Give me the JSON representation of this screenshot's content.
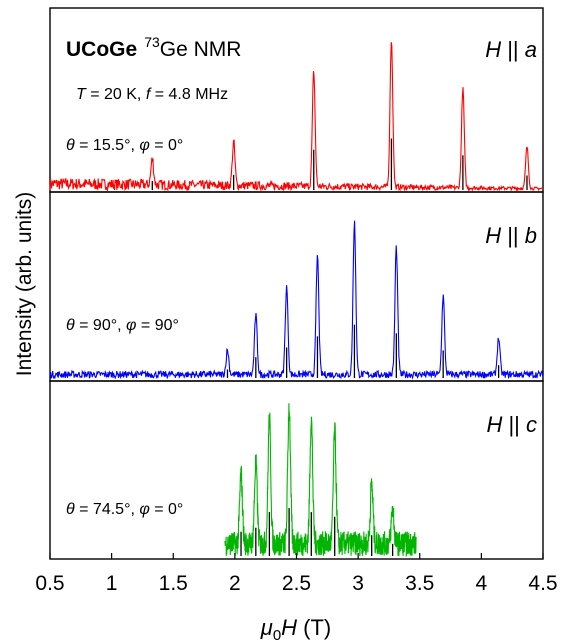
{
  "chart_data": {
    "type": "line",
    "xlabel_main": "μ",
    "xlabel_sub": "0",
    "xlabel_var": "H",
    "xlabel_unit": " (T)",
    "ylabel": "Intensity (arb. units)",
    "xlim": [
      0.5,
      4.5
    ],
    "xticks": [
      "0.5",
      "1",
      "1.5",
      "2",
      "2.5",
      "3",
      "3.5",
      "4",
      "4.5"
    ],
    "title_bold": "UCoGe",
    "title_sup": "73",
    "title_rest": "Ge NMR",
    "conditions": {
      "T_sym": "T",
      "T_val": " = 20 K, ",
      "f_sym": "f",
      "f_val": " = 4.8 MHz"
    },
    "panels": [
      {
        "field_label": "H",
        "field_sep": " || ",
        "field_axis": "a",
        "theta_text": " = 15.5°,  ",
        "phi_text": " = 0°",
        "color": "#ff0000",
        "xrange": [
          0.5,
          4.5
        ],
        "noise_level": 0.06,
        "peaks": [
          {
            "x": 1.33,
            "y": 0.16
          },
          {
            "x": 1.99,
            "y": 0.27
          },
          {
            "x": 2.64,
            "y": 0.72
          },
          {
            "x": 3.27,
            "y": 0.92
          },
          {
            "x": 3.85,
            "y": 0.62
          },
          {
            "x": 4.37,
            "y": 0.26
          }
        ]
      },
      {
        "field_label": "H",
        "field_sep": " || ",
        "field_axis": "b",
        "theta_text": " = 90°,  ",
        "phi_text": " = 90°",
        "color": "#0000ff",
        "xrange": [
          0.5,
          4.5
        ],
        "noise_level": 0.04,
        "peaks": [
          {
            "x": 1.94,
            "y": 0.14
          },
          {
            "x": 2.17,
            "y": 0.34
          },
          {
            "x": 2.42,
            "y": 0.5
          },
          {
            "x": 2.67,
            "y": 0.68
          },
          {
            "x": 2.97,
            "y": 0.87
          },
          {
            "x": 3.31,
            "y": 0.73
          },
          {
            "x": 3.69,
            "y": 0.45
          },
          {
            "x": 4.14,
            "y": 0.21
          }
        ]
      },
      {
        "field_label": "H",
        "field_sep": " || ",
        "field_axis": "c",
        "theta_text": " = 74.5°,  ",
        "phi_text": " = 0°",
        "color": "#00b400",
        "xrange": [
          1.92,
          3.47
        ],
        "noise_level": 0.15,
        "peaks": [
          {
            "x": 2.05,
            "y": 0.42
          },
          {
            "x": 2.17,
            "y": 0.49
          },
          {
            "x": 2.28,
            "y": 0.76
          },
          {
            "x": 2.44,
            "y": 0.83
          },
          {
            "x": 2.62,
            "y": 0.76
          },
          {
            "x": 2.81,
            "y": 0.68
          },
          {
            "x": 3.11,
            "y": 0.36
          },
          {
            "x": 3.28,
            "y": 0.21
          }
        ]
      }
    ]
  },
  "symbols": {
    "theta": "θ",
    "phi": "φ"
  }
}
